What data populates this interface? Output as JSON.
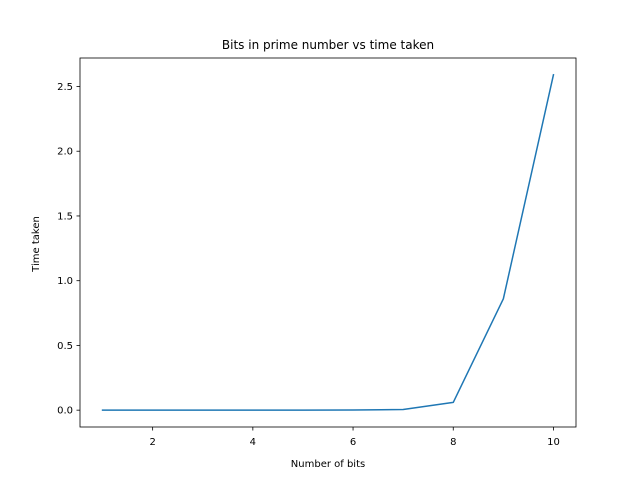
{
  "chart_data": {
    "type": "line",
    "title": "Bits in prime number vs time taken",
    "xlabel": "Number of bits",
    "ylabel": "Time taken",
    "xlim": [
      0.55,
      10.45
    ],
    "ylim": [
      -0.13,
      2.72
    ],
    "xticks": [
      2,
      4,
      6,
      8,
      10
    ],
    "xtick_labels": [
      "2",
      "4",
      "6",
      "8",
      "10"
    ],
    "yticks": [
      0.0,
      0.5,
      1.0,
      1.5,
      2.0,
      2.5
    ],
    "ytick_labels": [
      "0.0",
      "0.5",
      "1.0",
      "1.5",
      "2.0",
      "2.5"
    ],
    "grid": false,
    "legend": "none",
    "series": [
      {
        "color": "#1f77b4",
        "x": [
          1,
          2,
          3,
          4,
          5,
          6,
          7,
          8,
          9,
          10
        ],
        "y": [
          0.0,
          0.0,
          0.0,
          0.0,
          0.0,
          0.001,
          0.005,
          0.06,
          0.86,
          2.59
        ]
      }
    ]
  }
}
